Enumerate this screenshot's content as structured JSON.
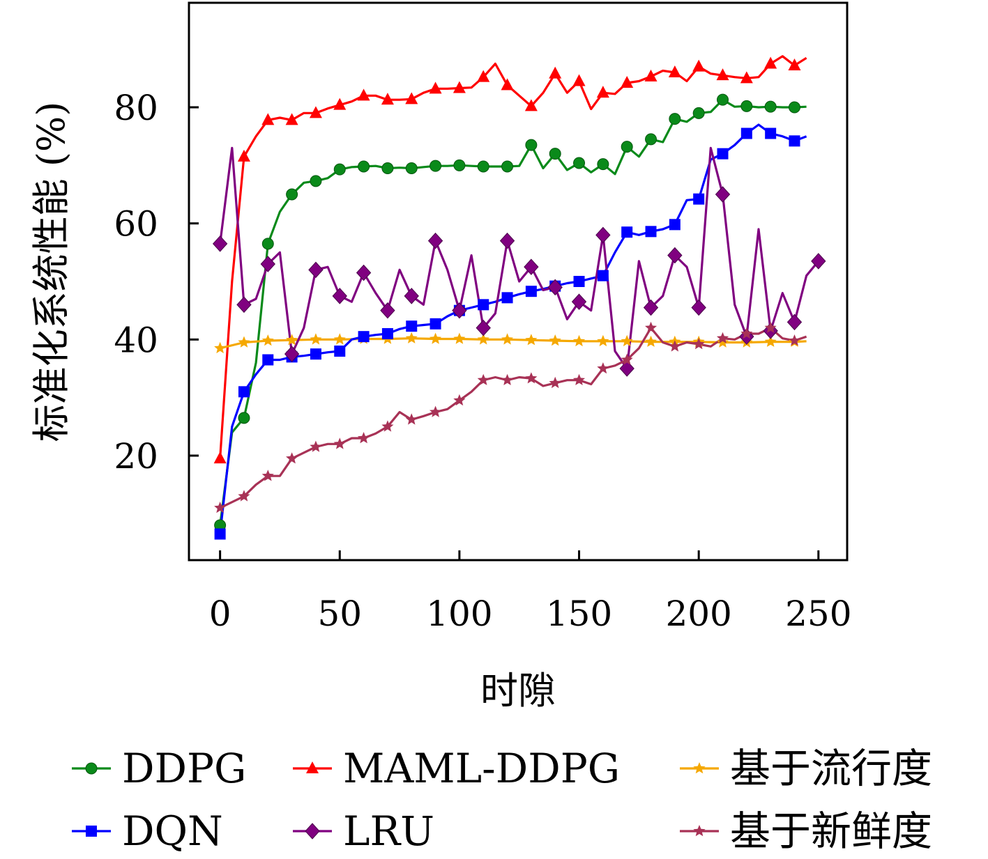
{
  "chart_data": {
    "type": "line",
    "title": "",
    "xlabel": "时隙",
    "ylabel": "标准化系统性能 (%)",
    "xlim": [
      -13,
      262
    ],
    "ylim": [
      2,
      98
    ],
    "xticks": [
      0,
      50,
      100,
      150,
      200,
      250
    ],
    "yticks": [
      20,
      40,
      60,
      80
    ],
    "grid": false,
    "legend_position": "bottom",
    "series": [
      {
        "name": "DDPG",
        "color": "#0a8a1a",
        "marker": "circle",
        "x": [
          0,
          5,
          10,
          15,
          20,
          25,
          30,
          35,
          40,
          45,
          50,
          55,
          60,
          65,
          70,
          75,
          80,
          85,
          90,
          95,
          100,
          105,
          110,
          115,
          120,
          125,
          130,
          135,
          140,
          145,
          150,
          155,
          160,
          165,
          170,
          175,
          180,
          185,
          190,
          195,
          200,
          205,
          210,
          215,
          220,
          225,
          230,
          235,
          240,
          245
        ],
        "y": [
          8,
          24,
          26.5,
          36,
          56.5,
          62,
          65,
          67,
          67.3,
          67.8,
          69.3,
          69.7,
          69.8,
          69.9,
          69.5,
          69.6,
          69.5,
          69.7,
          69.9,
          69.9,
          70,
          69.9,
          69.8,
          69.8,
          69.8,
          69.9,
          73.5,
          69.5,
          72,
          69.2,
          70.4,
          68.8,
          70.2,
          68.5,
          73.2,
          71.5,
          74.5,
          74,
          78,
          77.5,
          79,
          79.2,
          81.3,
          80.1,
          80.2,
          80,
          80.1,
          80,
          80,
          80.1
        ],
        "marked_x": [
          0,
          10,
          20,
          30,
          40,
          50,
          60,
          70,
          80,
          90,
          100,
          110,
          120,
          130,
          140,
          150,
          160,
          170,
          180,
          190,
          200,
          210,
          220,
          230,
          240
        ]
      },
      {
        "name": "MAML-DDPG",
        "color": "#ff0000",
        "marker": "triangle",
        "x": [
          0,
          5,
          10,
          15,
          20,
          25,
          30,
          35,
          40,
          45,
          50,
          55,
          60,
          65,
          70,
          75,
          80,
          85,
          90,
          95,
          100,
          105,
          110,
          115,
          120,
          125,
          130,
          135,
          140,
          145,
          150,
          155,
          160,
          165,
          170,
          175,
          180,
          185,
          190,
          195,
          200,
          205,
          210,
          215,
          220,
          225,
          230,
          235,
          240,
          245
        ],
        "y": [
          19.5,
          50,
          71.5,
          75,
          77.8,
          78.2,
          77.8,
          79,
          79,
          79.8,
          80.4,
          81,
          82,
          82,
          81.3,
          81.3,
          81.4,
          82.5,
          83.2,
          83.2,
          83.3,
          83.4,
          85.2,
          87.5,
          83.8,
          82,
          80.2,
          82.5,
          85.8,
          82.5,
          84.5,
          79.7,
          82.5,
          82.3,
          84.2,
          84.5,
          85.3,
          86.3,
          86,
          84.5,
          87,
          85.8,
          85.5,
          85.2,
          85,
          85.2,
          87.5,
          88.8,
          87.2,
          88.5
        ],
        "marked_x": [
          0,
          10,
          20,
          30,
          40,
          50,
          60,
          70,
          80,
          90,
          100,
          110,
          120,
          130,
          140,
          150,
          160,
          170,
          180,
          190,
          200,
          210,
          220,
          230,
          240
        ]
      },
      {
        "name": "基于流行度",
        "color": "#f5a800",
        "marker": "star",
        "x": [
          0,
          10,
          20,
          30,
          40,
          50,
          60,
          70,
          80,
          90,
          100,
          110,
          120,
          130,
          140,
          150,
          160,
          170,
          180,
          190,
          200,
          210,
          220,
          230,
          240,
          245
        ],
        "y": [
          38.5,
          39.5,
          39.8,
          39.9,
          40,
          40,
          40.1,
          40.1,
          40.2,
          40.1,
          40.1,
          40,
          40,
          39.9,
          39.8,
          39.7,
          39.7,
          39.7,
          39.6,
          39.6,
          39.6,
          39.5,
          39.5,
          39.6,
          39.6,
          39.7
        ],
        "marked_x": [
          0,
          10,
          20,
          30,
          40,
          50,
          60,
          70,
          80,
          90,
          100,
          110,
          120,
          130,
          140,
          150,
          160,
          170,
          180,
          190,
          200,
          210,
          220,
          230,
          240
        ]
      },
      {
        "name": "DQN",
        "color": "#0000ff",
        "marker": "square",
        "x": [
          0,
          5,
          10,
          15,
          20,
          25,
          30,
          35,
          40,
          45,
          50,
          55,
          60,
          65,
          70,
          75,
          80,
          85,
          90,
          95,
          100,
          105,
          110,
          115,
          120,
          125,
          130,
          135,
          140,
          145,
          150,
          155,
          160,
          165,
          170,
          175,
          180,
          185,
          190,
          195,
          200,
          205,
          210,
          215,
          220,
          225,
          230,
          235,
          240,
          245
        ],
        "y": [
          6.5,
          25,
          31,
          34,
          36.5,
          36.5,
          37,
          37.2,
          37.5,
          37.8,
          38,
          40,
          40.5,
          40.8,
          41,
          41.8,
          42.3,
          42.5,
          42.7,
          44,
          45,
          45.5,
          46,
          46.5,
          47.2,
          47.8,
          48.3,
          48.7,
          49.2,
          49.7,
          50,
          50.5,
          51,
          55,
          58.5,
          58,
          58.6,
          59,
          59.8,
          64,
          64.2,
          71,
          72,
          73.5,
          75.5,
          77,
          75.5,
          75,
          74.2,
          75
        ],
        "marked_x": [
          0,
          10,
          20,
          30,
          40,
          50,
          60,
          70,
          80,
          90,
          100,
          110,
          120,
          130,
          140,
          150,
          160,
          170,
          180,
          190,
          200,
          210,
          220,
          230,
          240
        ]
      },
      {
        "name": "LRU",
        "color": "#800080",
        "marker": "diamond",
        "x": [
          0,
          5,
          10,
          15,
          20,
          25,
          30,
          35,
          40,
          45,
          50,
          55,
          60,
          65,
          70,
          75,
          80,
          85,
          90,
          95,
          100,
          105,
          110,
          115,
          120,
          125,
          130,
          135,
          140,
          145,
          150,
          155,
          160,
          165,
          170,
          175,
          180,
          185,
          190,
          195,
          200,
          205,
          210,
          215,
          220,
          225,
          230,
          235,
          240,
          245,
          250
        ],
        "y": [
          56.5,
          73,
          46,
          47,
          53,
          55,
          37.5,
          42,
          52,
          52.5,
          47.5,
          46.5,
          51.5,
          48,
          45,
          52,
          47.5,
          46,
          57,
          52,
          45,
          54.5,
          42,
          44.5,
          57,
          50,
          52.5,
          48.5,
          49,
          43.5,
          46.5,
          45,
          58,
          38,
          35,
          53.5,
          45.5,
          47.5,
          54.5,
          52.5,
          45.5,
          73,
          65,
          46,
          40.5,
          59,
          41.5,
          48,
          43,
          51,
          53.5
        ],
        "marked_x": [
          0,
          10,
          20,
          30,
          40,
          50,
          60,
          70,
          80,
          90,
          100,
          110,
          120,
          130,
          140,
          150,
          160,
          170,
          180,
          190,
          200,
          210,
          220,
          230,
          240,
          250
        ]
      },
      {
        "name": "基于新鲜度",
        "color": "#a83256",
        "marker": "star",
        "x": [
          0,
          5,
          10,
          15,
          20,
          25,
          30,
          35,
          40,
          45,
          50,
          55,
          60,
          65,
          70,
          75,
          80,
          85,
          90,
          95,
          100,
          105,
          110,
          115,
          120,
          125,
          130,
          135,
          140,
          145,
          150,
          155,
          160,
          165,
          170,
          175,
          180,
          185,
          190,
          195,
          200,
          205,
          210,
          215,
          220,
          225,
          230,
          235,
          240,
          245
        ],
        "y": [
          11,
          12,
          13,
          15,
          16.5,
          16.5,
          19.5,
          20.5,
          21.5,
          22,
          22,
          23,
          23,
          23.8,
          25,
          27.5,
          26.2,
          26.8,
          27.5,
          28,
          29.5,
          31,
          33,
          33.5,
          33,
          33.5,
          33.3,
          32,
          32.5,
          33,
          33,
          32.3,
          35,
          35.5,
          36.5,
          38.5,
          42,
          39.5,
          38.8,
          39.5,
          39.2,
          38.8,
          40.2,
          40,
          41,
          41,
          42,
          40.2,
          39.8,
          40.5
        ],
        "marked_x": [
          0,
          10,
          20,
          30,
          40,
          50,
          60,
          70,
          80,
          90,
          100,
          110,
          120,
          130,
          140,
          150,
          160,
          170,
          180,
          190,
          200,
          210,
          220,
          230,
          240
        ]
      }
    ]
  }
}
